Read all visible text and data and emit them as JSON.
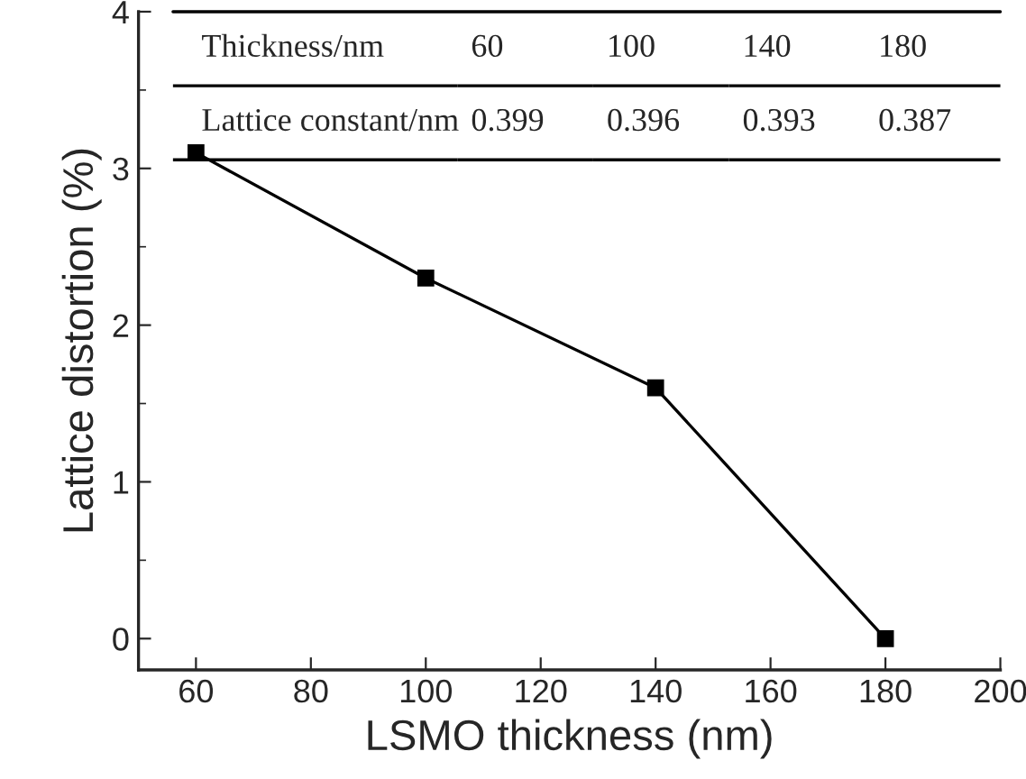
{
  "chart_data": {
    "type": "line",
    "xlabel": "LSMO thickness (nm)",
    "ylabel": "Lattice distortion (%)",
    "x": [
      60,
      100,
      140,
      180
    ],
    "series": [
      {
        "color": "#000000",
        "values": [
          3.1,
          2.3,
          1.6,
          0
        ]
      }
    ],
    "marker": "square",
    "line_style": "solid",
    "xlim": [
      50,
      200
    ],
    "xticks": [
      60,
      80,
      100,
      120,
      140,
      160,
      180,
      200
    ],
    "ylim": [
      -0.2,
      4
    ],
    "yticks": [
      0,
      1,
      2,
      3,
      4
    ],
    "grid": false,
    "legend": false,
    "annotations": [
      "Thickness/nm",
      "60",
      "100",
      "140",
      "180",
      "Lattice constant/nm",
      "0.399",
      "0.396",
      "0.393",
      "0.387"
    ]
  }
}
